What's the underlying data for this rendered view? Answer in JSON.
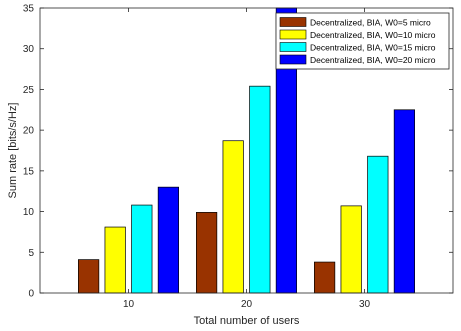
{
  "chart_data": {
    "type": "bar",
    "xlabel": "Total number of users",
    "ylabel": "Sum rate [bits/s/Hz]",
    "categories": [
      "10",
      "20",
      "30"
    ],
    "ylim": [
      0,
      35
    ],
    "yticks": [
      0,
      5,
      10,
      15,
      20,
      25,
      30,
      35
    ],
    "grid": false,
    "legend_position": "top-right",
    "series": [
      {
        "name": "Decentralized, BIA, W0=5 micro",
        "color": "#993300",
        "values": [
          4.1,
          9.9,
          3.8
        ]
      },
      {
        "name": "Decentralized, BIA, W0=10 micro",
        "color": "#ffff00",
        "values": [
          8.1,
          18.7,
          10.7
        ]
      },
      {
        "name": "Decentralized, BIA, W0=15 micro",
        "color": "#00ffff",
        "values": [
          10.8,
          25.4,
          16.8
        ]
      },
      {
        "name": "Decentralized, BIA, W0=20 micro",
        "color": "#0000ff",
        "values": [
          13.0,
          35.0,
          22.5
        ]
      }
    ]
  }
}
